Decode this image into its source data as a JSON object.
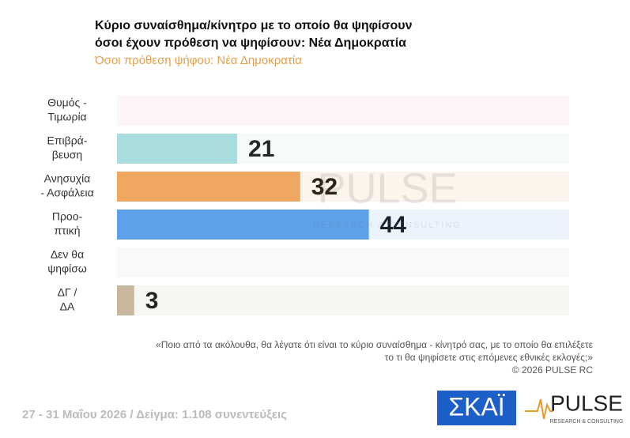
{
  "chart_data": {
    "type": "bar",
    "orientation": "horizontal",
    "title": [
      "Κύριο συναίσθημα/κίνητρο με το οποίο θα ψηφίσουν",
      "όσοι έχουν πρόθεση να ψηφίσουν: Νέα Δημοκρατία"
    ],
    "subtitle": "Όσοι πρόθεση ψήφου: Νέα Δημοκρατία",
    "categories": [
      [
        "Θυμός -",
        "Τιμωρία"
      ],
      [
        "Επιβρά-",
        "βευση"
      ],
      [
        "Ανησυχία",
        "- Ασφάλεια"
      ],
      [
        "Προο-",
        "πτική"
      ],
      [
        "Δεν θα",
        "ψηφίσω"
      ],
      [
        "ΔΓ /",
        "ΔΑ"
      ]
    ],
    "values": [
      null,
      21,
      32,
      44,
      null,
      3
    ],
    "colors": [
      "#f4b8b8",
      "#a9dcdc",
      "#f0a862",
      "#5ea2ea",
      "#cccccc",
      "#c9b89e"
    ],
    "xlim": [
      0,
      79
    ],
    "note": [
      "«Ποιο από τα ακόλουθα, θα λέγατε ότι είναι το κύριο συναίσθημα - κίνητρό σας, με το οποίο θα επιλέξετε",
      "το τι θα ψηφίσετε στις επόμενες εθνικές εκλογές;»"
    ],
    "copyright": "©  2026  PULSE RC",
    "footer": "27 - 31  Μαΐου 2026  /  Δείγμα:  1.108 συνεντεύξεις",
    "watermark": [
      "PULSE",
      "RESEARCH & CONSULTING"
    ],
    "logos": [
      "ΣΚΑΪ",
      "PULSE",
      "RESEARCH & CONSULTING"
    ]
  }
}
